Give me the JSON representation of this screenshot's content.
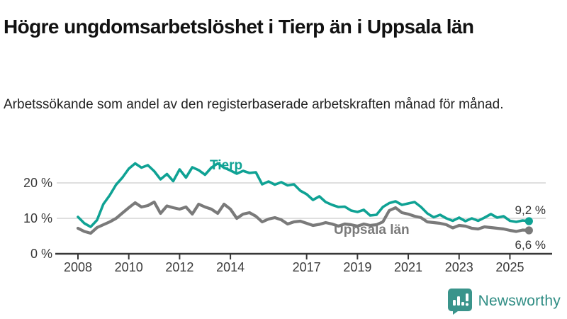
{
  "header": {
    "title": "Högre ungdomsarbetslöshet i Tierp än i Uppsala län",
    "subtitle": "Arbetssökande som andel av den registerbaserade arbetskraften månad för månad."
  },
  "chart_data": {
    "type": "line",
    "x_start": 2008,
    "x_step": 0.25,
    "x_ticks": [
      2008,
      2010,
      2012,
      2014,
      2017,
      2019,
      2021,
      2023,
      2025
    ],
    "y_ticks": [
      {
        "value": 0,
        "label": "0 %"
      },
      {
        "value": 10,
        "label": "10 %"
      },
      {
        "value": 20,
        "label": "20 %"
      }
    ],
    "ylim": [
      0,
      27
    ],
    "grid": true,
    "axis_color": "#383838",
    "grid_color": "#cccccc",
    "series": [
      {
        "name": "Tierp",
        "color": "#0fa294",
        "end_label": "9,2 %",
        "values": [
          10.4,
          8.6,
          7.6,
          9.5,
          14,
          16.5,
          19.5,
          21.5,
          24,
          25.5,
          24.3,
          25,
          23.3,
          21,
          22.5,
          20.5,
          23.8,
          21.5,
          24.4,
          23.6,
          22.3,
          24.3,
          25.5,
          24.3,
          23.5,
          22.6,
          23.4,
          22.8,
          23,
          19.6,
          20.4,
          19.5,
          20.2,
          19.3,
          19.6,
          17.8,
          16.8,
          15.2,
          16.2,
          14.6,
          13.8,
          13.2,
          13.3,
          12.2,
          11.8,
          12.4,
          10.8,
          11,
          13.2,
          14.3,
          14.8,
          13.8,
          14.2,
          14.6,
          13.2,
          11.4,
          10.3,
          11,
          10,
          9.3,
          10.2,
          9.2,
          10,
          9.3,
          10.2,
          11.2,
          10.2,
          10.6,
          9.3,
          9,
          9.4,
          9.2
        ]
      },
      {
        "name": "Uppsala län",
        "color": "#7a7a7a",
        "end_label": "6,6 %",
        "values": [
          7.2,
          6.3,
          5.8,
          7.4,
          8.2,
          9,
          10,
          11.5,
          13,
          14.4,
          13.2,
          13.6,
          14.6,
          11.4,
          13.5,
          13,
          12.6,
          13.2,
          11.2,
          14,
          13.2,
          12.6,
          11.4,
          14,
          12.6,
          10,
          11.2,
          11.6,
          10.6,
          9,
          9.8,
          10.2,
          9.6,
          8.4,
          9,
          9.2,
          8.6,
          8,
          8.3,
          8.8,
          8.4,
          7.8,
          8.4,
          8.2,
          7.8,
          8.4,
          8,
          8.2,
          9,
          12.2,
          13,
          11.6,
          11.2,
          10.6,
          10.2,
          9,
          8.8,
          8.6,
          8.2,
          7.3,
          8,
          7.8,
          7.2,
          7,
          7.6,
          7.4,
          7.2,
          7,
          6.6,
          6.3,
          6.7,
          6.6
        ]
      }
    ]
  },
  "footer": {
    "brand": "Newsworthy",
    "brand_color": "#2f8d84",
    "icon_color": "#3a948b",
    "icon_name": "newsworthy-chart-bubble-icon"
  }
}
